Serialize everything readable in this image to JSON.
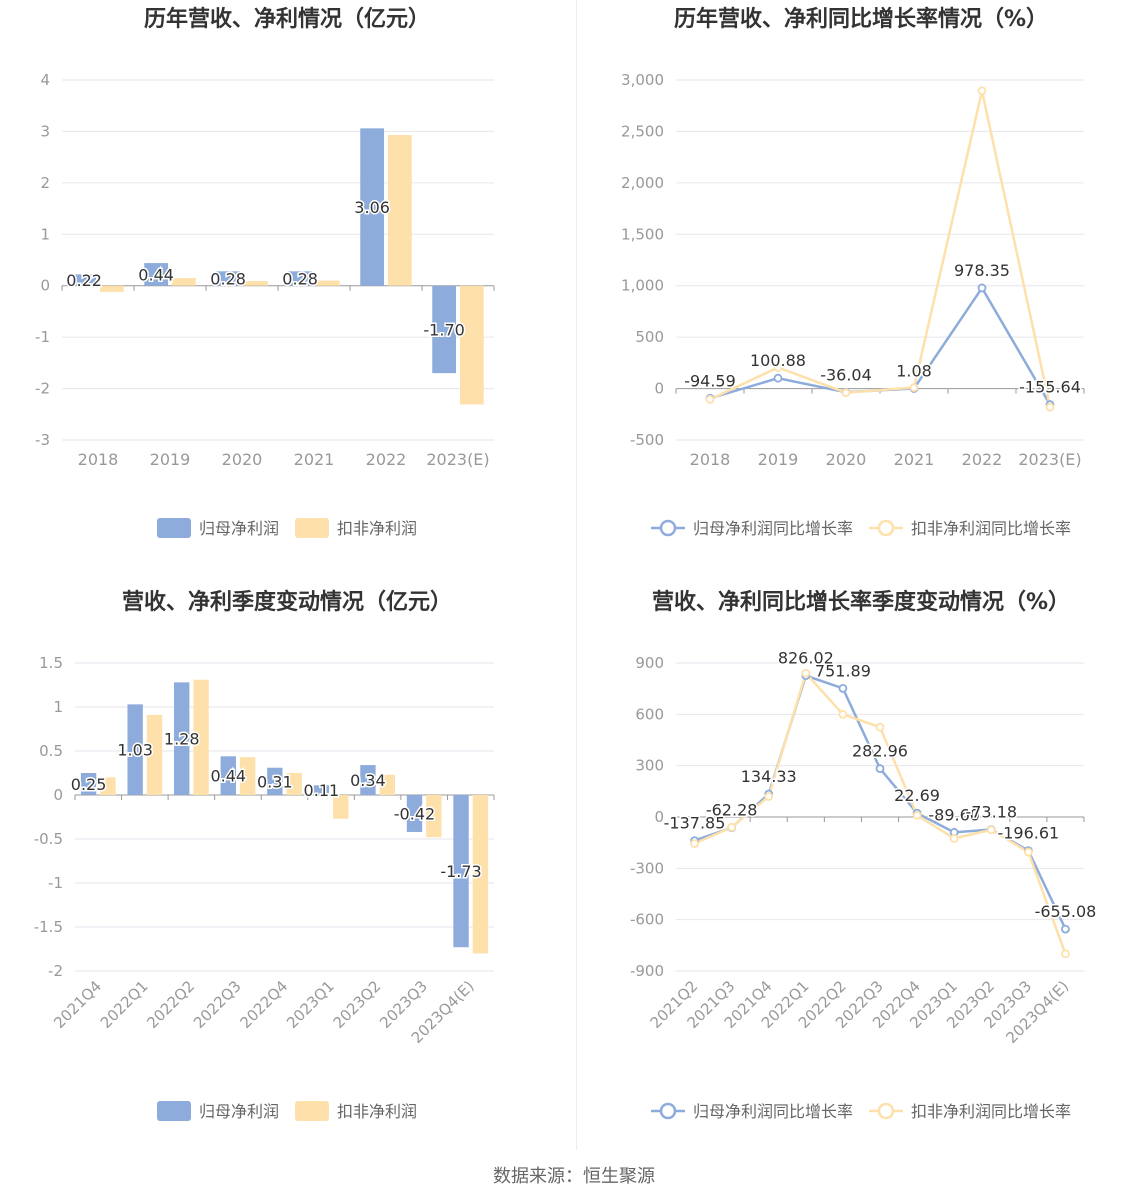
{
  "colors": {
    "blue": "#8eacdb",
    "yellow": "#fde0aa",
    "axis": "#999999",
    "grid": "#e6e6ee",
    "text": "#999999",
    "title": "#333333",
    "label": "#333333"
  },
  "footer": {
    "source": "数据来源：恒生聚源"
  },
  "chart_data": [
    {
      "type": "bar",
      "title": "历年营收、净利情况（亿元）",
      "categories": [
        "2018",
        "2019",
        "2020",
        "2021",
        "2022",
        "2023(E)"
      ],
      "ylim": [
        -3,
        4
      ],
      "yticks": [
        "4",
        "3",
        "2",
        "1",
        "0",
        "-1",
        "-2",
        "-3"
      ],
      "series": [
        {
          "name": "归母净利润",
          "values": [
            0.22,
            0.44,
            0.28,
            0.28,
            3.06,
            -1.7
          ],
          "labels": [
            "0.22",
            "0.44",
            "0.28",
            "0.28",
            "3.06",
            "-1.70"
          ]
        },
        {
          "name": "扣非净利润",
          "values": [
            -0.12,
            0.15,
            0.09,
            0.1,
            2.93,
            -2.31
          ]
        }
      ],
      "legend": "bottom-center",
      "grid": true
    },
    {
      "type": "line",
      "title": "历年营收、净利同比增长率情况（%）",
      "categories": [
        "2018",
        "2019",
        "2020",
        "2021",
        "2022",
        "2023(E)"
      ],
      "ylim": [
        -500,
        3000
      ],
      "yticks": [
        "3,000",
        "2,500",
        "2,000",
        "1,500",
        "1,000",
        "500",
        "0",
        "-500"
      ],
      "series": [
        {
          "name": "归母净利润同比增长率",
          "values": [
            -94.59,
            100.88,
            -36.04,
            1.08,
            978.35,
            -155.64
          ],
          "labels": [
            "-94.59",
            "100.88",
            "-36.04",
            "1.08",
            "978.35",
            "-155.64"
          ]
        },
        {
          "name": "扣非净利润同比增长率",
          "values": [
            -105,
            205,
            -40,
            10,
            2895,
            -180
          ]
        }
      ],
      "legend": "bottom-center",
      "grid": true
    },
    {
      "type": "bar",
      "title": "营收、净利季度变动情况（亿元）",
      "categories": [
        "2021Q4",
        "2022Q1",
        "2022Q2",
        "2022Q3",
        "2022Q4",
        "2023Q1",
        "2023Q2",
        "2023Q3",
        "2023Q4(E)"
      ],
      "ylim": [
        -2,
        1.5
      ],
      "yticks": [
        "1.5",
        "1",
        "0.5",
        "0",
        "-0.5",
        "-1",
        "-1.5",
        "-2"
      ],
      "series": [
        {
          "name": "归母净利润",
          "values": [
            0.25,
            1.03,
            1.28,
            0.44,
            0.31,
            0.11,
            0.34,
            -0.42,
            -1.73
          ],
          "labels": [
            "0.25",
            "1.03",
            "1.28",
            "0.44",
            "0.31",
            "0.11",
            "0.34",
            "-0.42",
            "-1.73"
          ]
        },
        {
          "name": "扣非净利润",
          "values": [
            0.2,
            0.91,
            1.31,
            0.43,
            0.25,
            -0.27,
            0.23,
            -0.48,
            -1.8
          ]
        }
      ],
      "legend": "bottom-center",
      "grid": true
    },
    {
      "type": "line",
      "title": "营收、净利同比增长率季度变动情况（%）",
      "categories": [
        "2021Q2",
        "2021Q3",
        "2021Q4",
        "2022Q1",
        "2022Q2",
        "2022Q3",
        "2022Q4",
        "2023Q1",
        "2023Q2",
        "2023Q3",
        "2023Q4(E)"
      ],
      "ylim": [
        -900,
        900
      ],
      "yticks": [
        "900",
        "600",
        "300",
        "0",
        "-300",
        "-600",
        "-900"
      ],
      "series": [
        {
          "name": "归母净利润同比增长率",
          "values": [
            -137.85,
            -62.28,
            134.33,
            826.02,
            751.89,
            282.96,
            22.69,
            -89.6,
            -73.18,
            -196.61,
            -655.08
          ],
          "labels": [
            "-137.85",
            "-62.28",
            "134.33",
            "826.02",
            "751.89",
            "282.96",
            "22.69",
            "-89.60",
            "-73.18",
            "-196.61",
            "-655.08"
          ]
        },
        {
          "name": "扣非净利润同比增长率",
          "values": [
            -155,
            -60,
            120,
            840,
            600,
            525,
            10,
            -125,
            -75,
            -205,
            -800
          ]
        }
      ],
      "legend": "bottom-center",
      "grid": true
    }
  ]
}
